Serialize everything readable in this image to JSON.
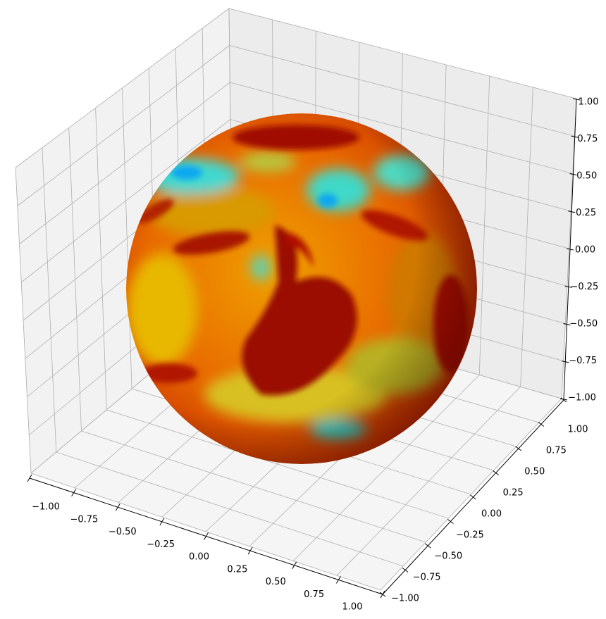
{
  "chart_data": {
    "type": "surface",
    "subtype": "3d-sphere-colormapped",
    "title": "",
    "xlabel": "",
    "ylabel": "",
    "zlabel": "",
    "xlim": [
      -1,
      1
    ],
    "ylim": [
      -1,
      1
    ],
    "zlim": [
      -1,
      1
    ],
    "grid": true,
    "colormap": "jet",
    "surface": {
      "shape": "sphere",
      "radius": 1,
      "center": [
        0,
        0,
        0
      ]
    },
    "x_ticks": [
      "−1.00",
      "−0.75",
      "−0.50",
      "−0.25",
      "0.00",
      "0.25",
      "0.50",
      "0.75",
      "1.00"
    ],
    "y_ticks": [
      "−1.00",
      "−0.75",
      "−0.50",
      "−0.25",
      "0.00",
      "0.25",
      "0.50",
      "0.75",
      "1.00"
    ],
    "z_ticks": [
      "−1.00",
      "−0.75",
      "−0.50",
      "−0.25",
      "0.00",
      "0.25",
      "0.50",
      "0.75",
      "1.00"
    ],
    "colors": {
      "low": "#19c8e6",
      "mid": "#e6c800",
      "high": "#f05a00",
      "max": "#8c0000"
    }
  }
}
